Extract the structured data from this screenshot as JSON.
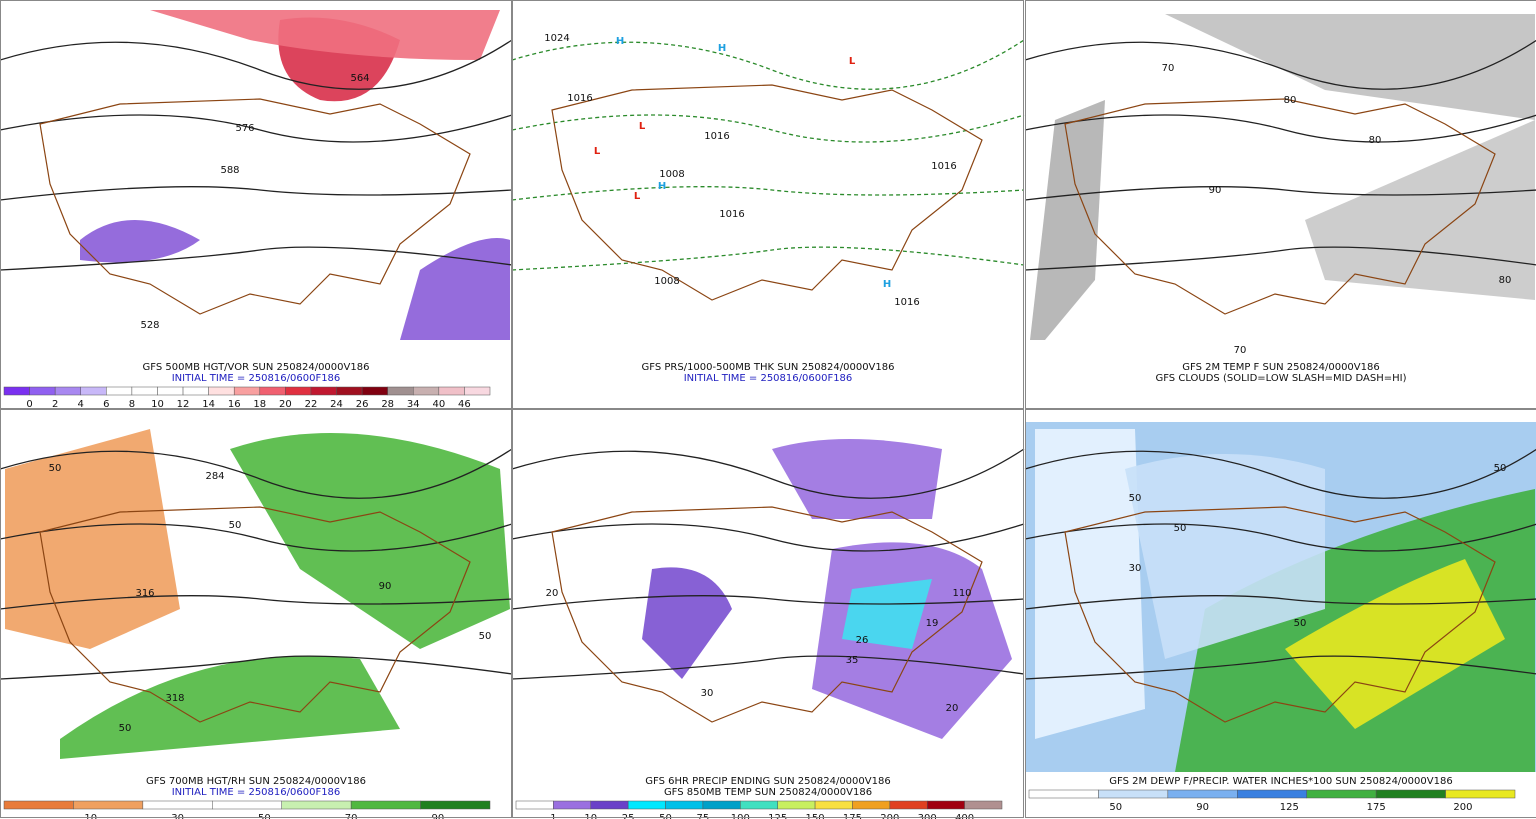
{
  "panels": [
    {
      "caption": [
        "GFS 500MB HGT/VOR SUN 250824/0000V186",
        "INITIAL TIME = 250816/0600F186"
      ],
      "colorbar": [
        0,
        2,
        4,
        6,
        8,
        10,
        12,
        14,
        16,
        18,
        20,
        22,
        24,
        26,
        28,
        34,
        40,
        46
      ],
      "map_labels": [
        "564",
        "576",
        "588",
        "528"
      ]
    },
    {
      "caption": [
        "GFS PRS/1000-500MB THK SUN 250824/0000V186",
        "INITIAL TIME = 250816/0600F186"
      ],
      "map_labels": [
        "1024",
        "1016",
        "1016",
        "1008",
        "1016",
        "1016",
        "1008",
        "1016",
        "H",
        "H",
        "H",
        "H",
        "L",
        "L",
        "L",
        "L"
      ]
    },
    {
      "caption": [
        "GFS 2M TEMP F SUN 250824/0000V186",
        "GFS CLOUDS (SOLID=LOW SLASH=MID DASH=HI)"
      ],
      "map_labels": [
        "70",
        "80",
        "90",
        "80",
        "70",
        "80"
      ]
    },
    {
      "caption": [
        "GFS 700MB HGT/RH SUN 250824/0000V186",
        "INITIAL TIME = 250816/0600F186"
      ],
      "colorbar": [
        10,
        30,
        50,
        70,
        90
      ],
      "map_labels": [
        "50",
        "50",
        "316",
        "284",
        "90",
        "50",
        "318",
        "50"
      ]
    },
    {
      "caption": [
        "GFS 6HR PRECIP ENDING SUN 250824/0000V186",
        "GFS 850MB TEMP SUN 250824/0000V186"
      ],
      "colorbar": [
        1,
        10,
        25,
        50,
        75,
        100,
        125,
        150,
        175,
        200,
        300,
        400
      ],
      "map_labels": [
        "20",
        "30",
        "110",
        "19",
        "26",
        "35",
        "20"
      ]
    },
    {
      "caption": [
        "GFS 2M DEWP F/PRECIP. WATER INCHES*100 SUN 250824/0000V186"
      ],
      "colorbar": [
        50,
        90,
        125,
        175,
        200
      ],
      "map_labels": [
        "50",
        "30",
        "50",
        "50",
        "50"
      ]
    }
  ]
}
